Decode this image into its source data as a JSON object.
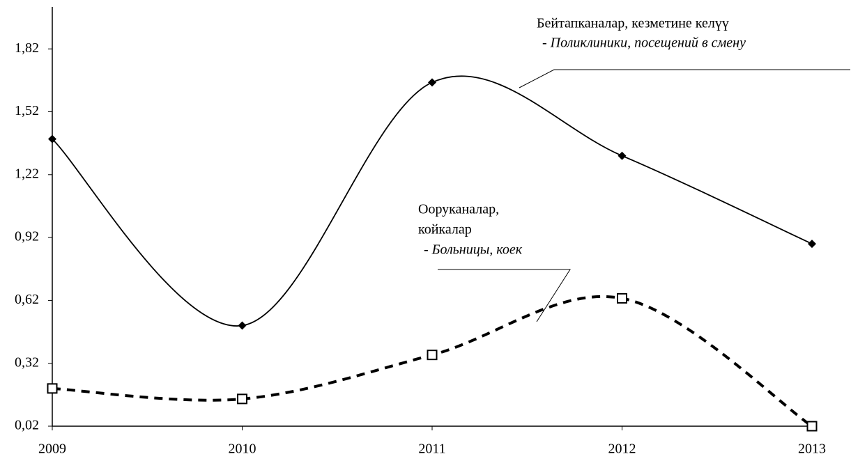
{
  "chart_data": {
    "type": "line",
    "categories": [
      "2009",
      "2010",
      "2011",
      "2012",
      "2013"
    ],
    "series": [
      {
        "name_lines": [
          "Бейтапканалар, кезметине келүү",
          "- Поликлиники, посещений в смену"
        ],
        "color": "#000000",
        "style": "solid",
        "marker": "diamond",
        "values": [
          1.39,
          0.5,
          1.66,
          1.31,
          0.89
        ]
      },
      {
        "name_lines": [
          "Ооруканалар,",
          "койкалар",
          "- Больницы, коек"
        ],
        "color": "#000000",
        "style": "dashed",
        "marker": "square",
        "values": [
          0.2,
          0.15,
          0.36,
          0.63,
          0.02
        ]
      }
    ],
    "ylim": [
      0.02,
      2.02
    ],
    "yticks": [
      {
        "value": 0.02,
        "label": "0,02"
      },
      {
        "value": 0.32,
        "label": "0,32"
      },
      {
        "value": 0.62,
        "label": "0,62"
      },
      {
        "value": 0.92,
        "label": "0,92"
      },
      {
        "value": 1.22,
        "label": "1,22"
      },
      {
        "value": 1.52,
        "label": "1,52"
      },
      {
        "value": 1.82,
        "label": "1,82"
      }
    ],
    "grid": false
  }
}
